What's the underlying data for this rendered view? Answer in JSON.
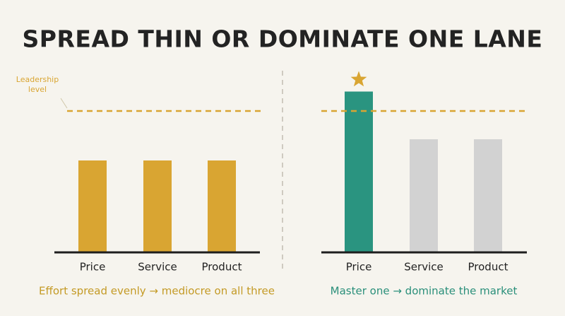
{
  "title": "SPREAD THIN OR DOMINATE ONE LANE",
  "chart_data": [
    {
      "type": "bar",
      "categories": [
        "Price",
        "Service",
        "Product"
      ],
      "values": [
        52,
        52,
        52
      ],
      "colors": [
        "#d9a532",
        "#d9a532",
        "#d9a532"
      ],
      "ylim": [
        0,
        100
      ],
      "reference_line": 80,
      "reference_label": "Leadership level",
      "reference_color": "#d9a532",
      "caption": "Effort spread evenly → mediocre on all three",
      "caption_color": "#c49a25"
    },
    {
      "type": "bar",
      "categories": [
        "Price",
        "Service",
        "Product"
      ],
      "values": [
        91,
        64,
        64
      ],
      "colors": [
        "#2a9480",
        "#d2d2d2",
        "#d2d2d2"
      ],
      "ylim": [
        0,
        100
      ],
      "reference_line": 80,
      "reference_color": "#d9a532",
      "highlight": 0,
      "caption": "Master one → dominate the market",
      "caption_color": "#2a8f7a"
    }
  ]
}
